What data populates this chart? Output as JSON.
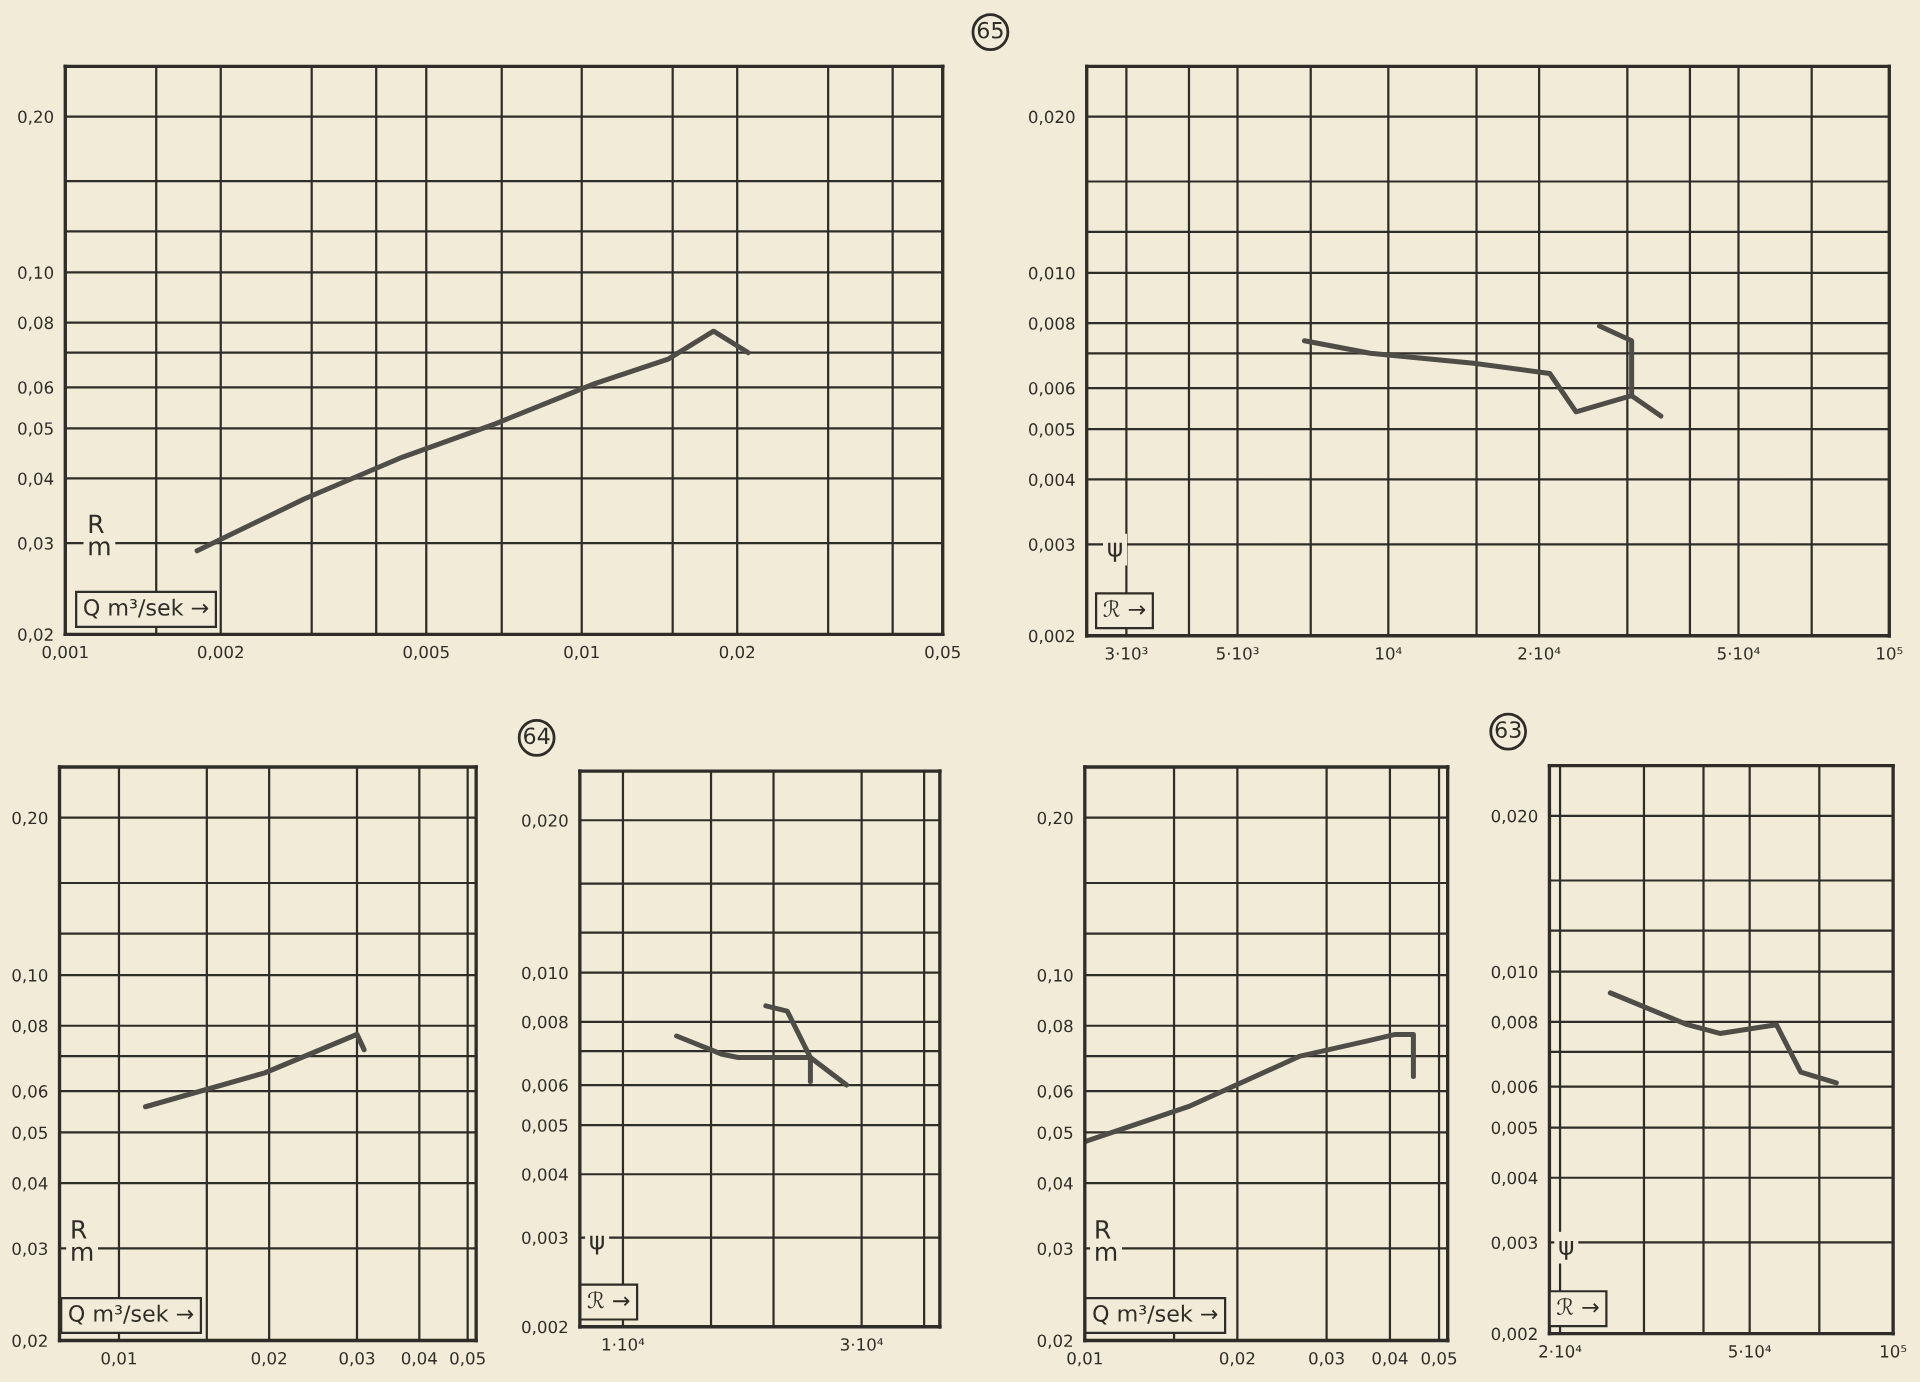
{
  "chart_data": [
    {
      "type": "line",
      "log": "xy",
      "grid": true,
      "xlabel": "Q m³/sek →",
      "ylabel": "R\nm",
      "xlim": [
        0.001,
        0.05
      ],
      "ylim": [
        0.02,
        0.25
      ],
      "xticks": [
        {
          "value": 0.001,
          "label": "0,001"
        },
        {
          "value": 0.0015,
          "label": null
        },
        {
          "value": 0.002,
          "label": "0,002"
        },
        {
          "value": 0.003,
          "label": null
        },
        {
          "value": 0.004,
          "label": null
        },
        {
          "value": 0.005,
          "label": "0,005"
        },
        {
          "value": 0.007,
          "label": null
        },
        {
          "value": 0.01,
          "label": "0,01"
        },
        {
          "value": 0.015,
          "label": null
        },
        {
          "value": 0.02,
          "label": "0,02"
        },
        {
          "value": 0.03,
          "label": null
        },
        {
          "value": 0.04,
          "label": null
        },
        {
          "value": 0.05,
          "label": "0,05"
        }
      ],
      "yticks": [
        {
          "value": 0.02,
          "label": "0,02"
        },
        {
          "value": 0.03,
          "label": "0,03"
        },
        {
          "value": 0.04,
          "label": "0,04"
        },
        {
          "value": 0.05,
          "label": "0,05"
        },
        {
          "value": 0.06,
          "label": "0,06"
        },
        {
          "value": 0.07,
          "label": null
        },
        {
          "value": 0.08,
          "label": "0,08"
        },
        {
          "value": 0.1,
          "label": "0,10"
        },
        {
          "value": 0.12,
          "label": null
        },
        {
          "value": 0.15,
          "label": null
        },
        {
          "value": 0.2,
          "label": "0,20"
        }
      ],
      "series": [
        {
          "color": "#4f4d48",
          "x": [
            0.0018,
            0.0029,
            0.0045,
            0.0068,
            0.0106,
            0.0147,
            0.018,
            0.021
          ],
          "values": [
            0.029,
            0.0365,
            0.044,
            0.051,
            0.061,
            0.068,
            0.077,
            0.07
          ]
        }
      ]
    },
    {
      "type": "line",
      "log": "xy",
      "grid": true,
      "xlabel": "ℛ →",
      "ylabel": "ψ",
      "annotations": [
        "65"
      ],
      "xlim": [
        2500,
        100000
      ],
      "ylim": [
        0.002,
        0.025
      ],
      "xticks": [
        {
          "value": 3000,
          "label": "3·10³"
        },
        {
          "value": 4000,
          "label": null
        },
        {
          "value": 5000,
          "label": "5·10³"
        },
        {
          "value": 7000,
          "label": null
        },
        {
          "value": 10000,
          "label": "10⁴"
        },
        {
          "value": 15000,
          "label": null
        },
        {
          "value": 20000,
          "label": "2·10⁴"
        },
        {
          "value": 30000,
          "label": null
        },
        {
          "value": 40000,
          "label": null
        },
        {
          "value": 50000,
          "label": "5·10⁴"
        },
        {
          "value": 70000,
          "label": null
        },
        {
          "value": 100000,
          "label": "10⁵"
        }
      ],
      "yticks": [
        {
          "value": 0.002,
          "label": "0,002"
        },
        {
          "value": 0.003,
          "label": "0,003"
        },
        {
          "value": 0.004,
          "label": "0,004"
        },
        {
          "value": 0.005,
          "label": "0,005"
        },
        {
          "value": 0.006,
          "label": "0,006"
        },
        {
          "value": 0.007,
          "label": null
        },
        {
          "value": 0.008,
          "label": "0,008"
        },
        {
          "value": 0.01,
          "label": "0,010"
        },
        {
          "value": 0.012,
          "label": null
        },
        {
          "value": 0.015,
          "label": null
        },
        {
          "value": 0.02,
          "label": "0,020"
        }
      ],
      "series": [
        {
          "color": "#4f4d48",
          "x": [
            6800,
            9200,
            14800,
            21000,
            23700,
            30600
          ],
          "values": [
            0.0074,
            0.007,
            0.0067,
            0.0064,
            0.0054,
            0.0058
          ]
        },
        {
          "color": "#4f4d48",
          "x": [
            26400,
            30600,
            30600,
            35000
          ],
          "values": [
            0.0079,
            0.0074,
            0.0058,
            0.0053
          ]
        }
      ]
    },
    {
      "type": "line",
      "log": "xy",
      "grid": true,
      "xlabel": "Q m³/sek →",
      "ylabel": "R\nm",
      "xlim": [
        0.0076,
        0.052
      ],
      "ylim": [
        0.02,
        0.25
      ],
      "xticks": [
        {
          "value": 0.01,
          "label": "0,01"
        },
        {
          "value": 0.015,
          "label": null
        },
        {
          "value": 0.02,
          "label": "0,02"
        },
        {
          "value": 0.03,
          "label": "0,03"
        },
        {
          "value": 0.04,
          "label": "0,04"
        },
        {
          "value": 0.05,
          "label": "0,05"
        }
      ],
      "yticks": [
        {
          "value": 0.02,
          "label": "0,02"
        },
        {
          "value": 0.03,
          "label": "0,03"
        },
        {
          "value": 0.04,
          "label": "0,04"
        },
        {
          "value": 0.05,
          "label": "0,05"
        },
        {
          "value": 0.06,
          "label": "0,06"
        },
        {
          "value": 0.07,
          "label": null
        },
        {
          "value": 0.08,
          "label": "0,08"
        },
        {
          "value": 0.1,
          "label": "0,10"
        },
        {
          "value": 0.12,
          "label": null
        },
        {
          "value": 0.15,
          "label": null
        },
        {
          "value": 0.2,
          "label": "0,20"
        }
      ],
      "series": [
        {
          "color": "#4f4d48",
          "x": [
            0.0113,
            0.0196,
            0.03,
            0.031
          ],
          "values": [
            0.056,
            0.065,
            0.077,
            0.072
          ]
        }
      ]
    },
    {
      "type": "line",
      "log": "xy",
      "grid": true,
      "xlabel": "ℛ →",
      "ylabel": "ψ",
      "annotations": [
        "64"
      ],
      "xlim": [
        8200,
        43000
      ],
      "ylim": [
        0.002,
        0.025
      ],
      "xticks": [
        {
          "value": 10000,
          "label": "1·10⁴"
        },
        {
          "value": 15000,
          "label": null
        },
        {
          "value": 20000,
          "label": null
        },
        {
          "value": 30000,
          "label": "3·10⁴"
        },
        {
          "value": 40000,
          "label": null
        }
      ],
      "yticks": [
        {
          "value": 0.002,
          "label": "0,002"
        },
        {
          "value": 0.003,
          "label": "0,003"
        },
        {
          "value": 0.004,
          "label": "0,004"
        },
        {
          "value": 0.005,
          "label": "0,005"
        },
        {
          "value": 0.006,
          "label": "0,006"
        },
        {
          "value": 0.007,
          "label": null
        },
        {
          "value": 0.008,
          "label": "0,008"
        },
        {
          "value": 0.01,
          "label": "0,010"
        },
        {
          "value": 0.012,
          "label": null
        },
        {
          "value": 0.015,
          "label": null
        },
        {
          "value": 0.02,
          "label": "0,020"
        }
      ],
      "series": [
        {
          "color": "#4f4d48",
          "x": [
            12800,
            15800,
            17000,
            23700,
            28000
          ],
          "values": [
            0.0075,
            0.0069,
            0.0068,
            0.0068,
            0.006
          ]
        },
        {
          "color": "#4f4d48",
          "x": [
            19300,
            21300,
            23700,
            23700
          ],
          "values": [
            0.0086,
            0.0084,
            0.0068,
            0.0061
          ]
        }
      ]
    },
    {
      "type": "line",
      "log": "xy",
      "grid": true,
      "xlabel": "Q m³/sek →",
      "ylabel": "R\nm",
      "xlim": [
        0.01,
        0.052
      ],
      "ylim": [
        0.02,
        0.25
      ],
      "xticks": [
        {
          "value": 0.01,
          "label": "0,01"
        },
        {
          "value": 0.015,
          "label": null
        },
        {
          "value": 0.02,
          "label": "0,02"
        },
        {
          "value": 0.03,
          "label": "0,03"
        },
        {
          "value": 0.04,
          "label": "0,04"
        },
        {
          "value": 0.05,
          "label": "0,05"
        }
      ],
      "yticks": [
        {
          "value": 0.02,
          "label": "0,02"
        },
        {
          "value": 0.03,
          "label": "0,03"
        },
        {
          "value": 0.04,
          "label": "0,04"
        },
        {
          "value": 0.05,
          "label": "0,05"
        },
        {
          "value": 0.06,
          "label": "0,06"
        },
        {
          "value": 0.07,
          "label": null
        },
        {
          "value": 0.08,
          "label": "0,08"
        },
        {
          "value": 0.1,
          "label": "0,10"
        },
        {
          "value": 0.12,
          "label": null
        },
        {
          "value": 0.15,
          "label": null
        },
        {
          "value": 0.2,
          "label": "0,20"
        }
      ],
      "series": [
        {
          "color": "#4f4d48",
          "x": [
            0.01,
            0.016,
            0.0266,
            0.0365,
            0.041,
            0.0445,
            0.0445
          ],
          "values": [
            0.048,
            0.056,
            0.07,
            0.075,
            0.077,
            0.077,
            0.064
          ]
        }
      ]
    },
    {
      "type": "line",
      "log": "xy",
      "grid": true,
      "xlabel": "ℛ →",
      "ylabel": "ψ",
      "annotations": [
        "63"
      ],
      "xlim": [
        19000,
        100000
      ],
      "ylim": [
        0.002,
        0.025
      ],
      "xticks": [
        {
          "value": 20000,
          "label": "2·10⁴"
        },
        {
          "value": 30000,
          "label": null
        },
        {
          "value": 40000,
          "label": null
        },
        {
          "value": 50000,
          "label": "5·10⁴"
        },
        {
          "value": 70000,
          "label": null
        },
        {
          "value": 100000,
          "label": "10⁵"
        }
      ],
      "yticks": [
        {
          "value": 0.002,
          "label": "0,002"
        },
        {
          "value": 0.003,
          "label": "0,003"
        },
        {
          "value": 0.004,
          "label": "0,004"
        },
        {
          "value": 0.005,
          "label": "0,005"
        },
        {
          "value": 0.006,
          "label": "0,006"
        },
        {
          "value": 0.007,
          "label": null
        },
        {
          "value": 0.008,
          "label": "0,008"
        },
        {
          "value": 0.01,
          "label": "0,010"
        },
        {
          "value": 0.012,
          "label": null
        },
        {
          "value": 0.015,
          "label": null
        },
        {
          "value": 0.02,
          "label": "0,020"
        }
      ],
      "series": [
        {
          "color": "#4f4d48",
          "x": [
            25500,
            37000,
            43300,
            56900,
            59000,
            64000,
            76000
          ],
          "values": [
            0.0091,
            0.0079,
            0.0076,
            0.0079,
            0.0074,
            0.0064,
            0.0061
          ]
        }
      ]
    }
  ]
}
